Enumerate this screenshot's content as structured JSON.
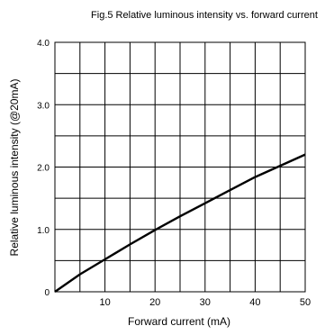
{
  "chart_data": {
    "type": "line",
    "title": "Fig.5 Relative luminous intensity vs. forward current",
    "xlabel": "Forward current (mA)",
    "ylabel": "Relative luminous intensity (@20mA)",
    "xlim": [
      0,
      50
    ],
    "ylim": [
      0,
      4.0
    ],
    "x_tick_values": [
      10,
      20,
      30,
      40,
      50
    ],
    "x_tick_labels": [
      "10",
      "20",
      "30",
      "40",
      "50"
    ],
    "y_tick_values": [
      0,
      1.0,
      2.0,
      3.0,
      4.0
    ],
    "y_tick_labels": [
      "0",
      "1.0",
      "2.0",
      "3.0",
      "4.0"
    ],
    "x_grid": [
      5,
      10,
      15,
      20,
      25,
      30,
      35,
      40,
      45,
      50
    ],
    "y_grid": [
      0.5,
      1.0,
      1.5,
      2.0,
      2.5,
      3.0,
      3.5,
      4.0
    ],
    "grid": true,
    "series": [
      {
        "color": "#000000",
        "x": [
          0,
          5,
          10,
          15,
          20,
          25,
          30,
          35,
          40,
          45,
          50
        ],
        "y": [
          0,
          0.28,
          0.52,
          0.76,
          0.99,
          1.21,
          1.42,
          1.63,
          1.84,
          2.02,
          2.2
        ]
      }
    ]
  }
}
